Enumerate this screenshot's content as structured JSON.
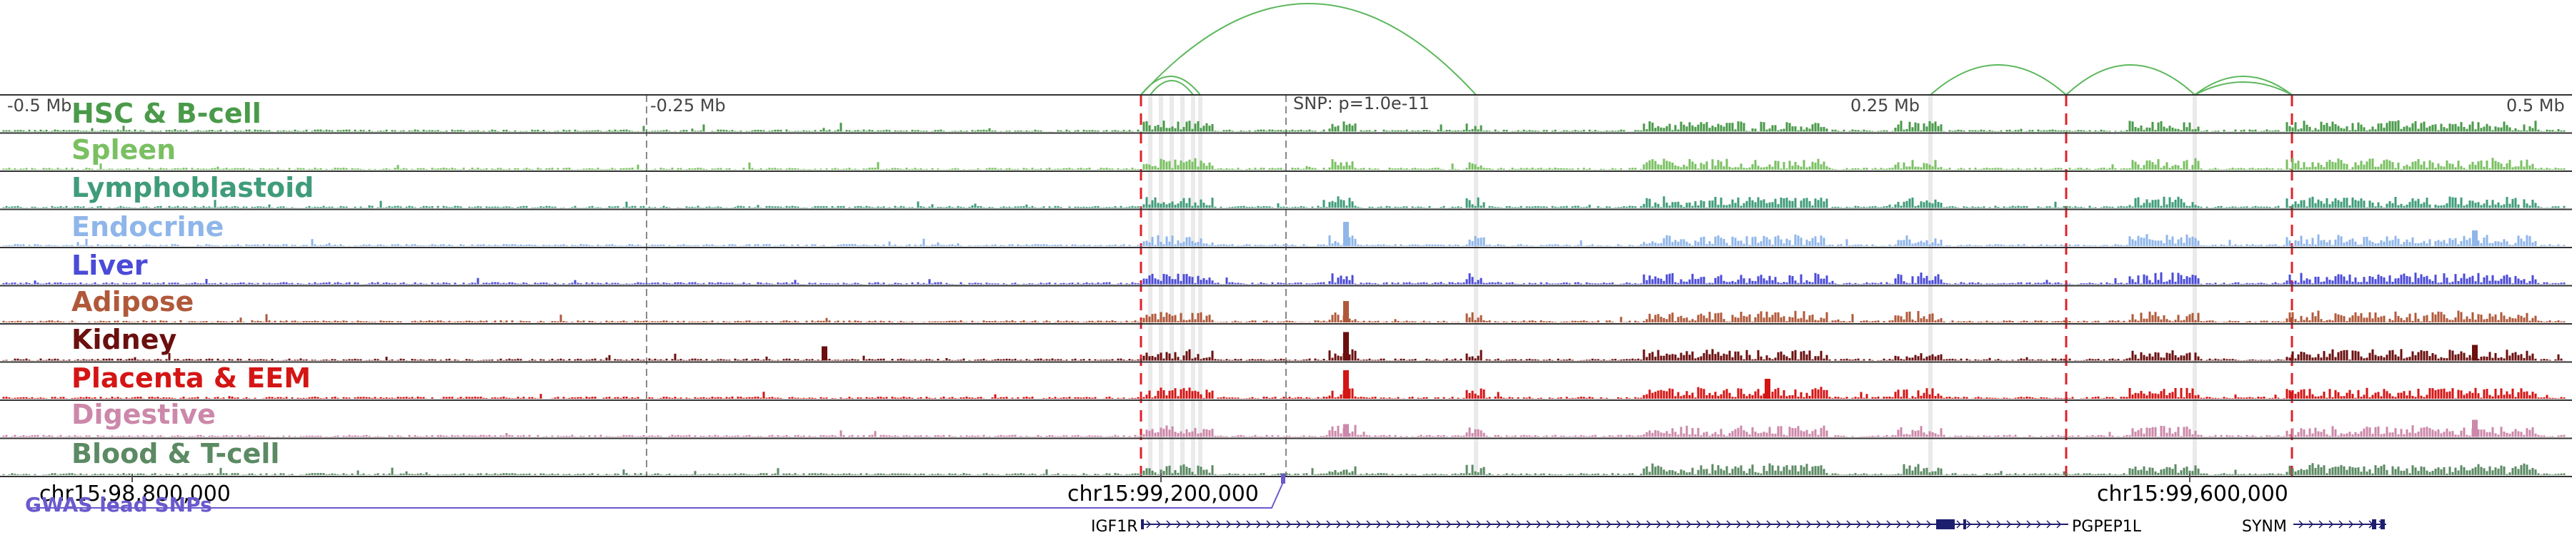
{
  "header": {
    "ticks": [
      "-0.5 Mb",
      "-0.25 Mb",
      "0.25 Mb",
      "0.5 Mb"
    ],
    "snp_label": "SNP: p=1.0e-11"
  },
  "tracks": [
    {
      "label": "HSC & B-cell",
      "color": "#4a9a4a"
    },
    {
      "label": "Spleen",
      "color": "#7ac062"
    },
    {
      "label": "Lymphoblastoid",
      "color": "#3f9c7a"
    },
    {
      "label": "Endocrine",
      "color": "#8fb6ea"
    },
    {
      "label": "Liver",
      "color": "#4b4bd8"
    },
    {
      "label": "Adipose",
      "color": "#b0593a"
    },
    {
      "label": "Kidney",
      "color": "#6b0f0f"
    },
    {
      "label": "Placenta & EEM",
      "color": "#d41515"
    },
    {
      "label": "Digestive",
      "color": "#cc88aa"
    },
    {
      "label": "Blood & T-cell",
      "color": "#5b8a63"
    }
  ],
  "coords": [
    "chr15:98,800,000",
    "chr15:99,200,000",
    "chr15:99,600,000"
  ],
  "gwas_label": "GWAS lead SNPs",
  "genes": [
    "IGF1R",
    "PGPEP1L",
    "SYNM"
  ],
  "colors": {
    "loop": "#5cb85c",
    "highlight_red": "#e0202a",
    "highlight_grey": "#d9d9d9",
    "gwas": "#6a5acd",
    "gene": "#1e1e6e"
  }
}
